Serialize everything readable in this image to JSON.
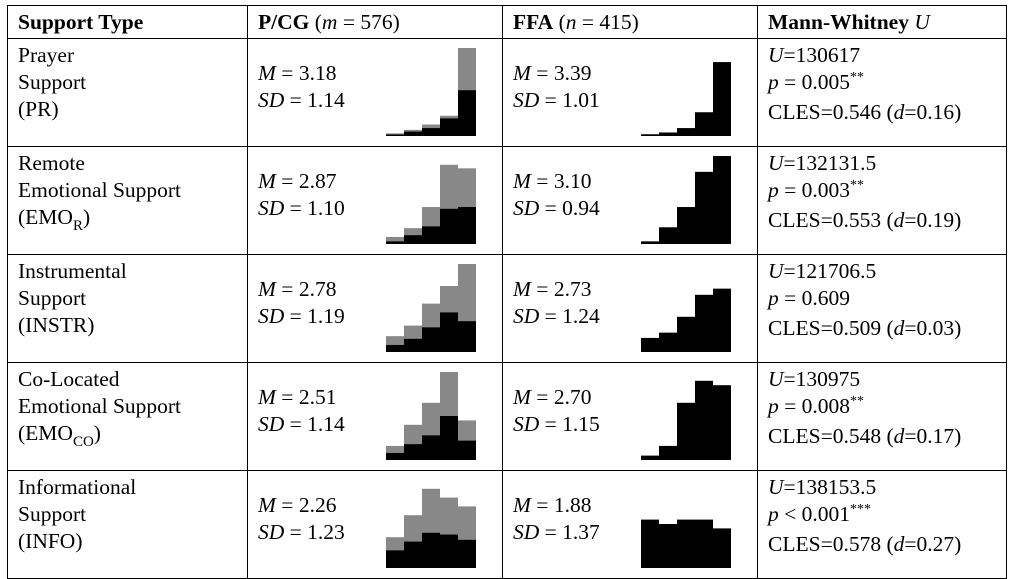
{
  "header": {
    "support_type": "Support Type",
    "pcg_label": "P/CG",
    "pcg_open": " (",
    "pcg_var": "m",
    "pcg_eq": " = 576)",
    "ffa_label": "FFA",
    "ffa_open": " (",
    "ffa_var": "n",
    "ffa_eq": " = 415)",
    "mw_label": "Mann-Whitney ",
    "mw_var": "U"
  },
  "stat_labels": {
    "mean": "M",
    "sd": "SD",
    "eq": " = ",
    "u": "U",
    "p": "p",
    "cles": "CLES=",
    "d_open": " (",
    "d": "d",
    "d_close": ")"
  },
  "colors": {
    "pcg_bar": "#888888",
    "ffa_bar": "#000000"
  },
  "rows": [
    {
      "type_lines": [
        "Prayer",
        "Support",
        "(PR)"
      ],
      "abbr": "",
      "abbr_sub": "",
      "pcg": {
        "mean": "3.18",
        "sd": "1.14",
        "hist_pcg": [
          0.03,
          0.07,
          0.13,
          0.23,
          1.0
        ],
        "hist_ffa": [
          0.01,
          0.05,
          0.09,
          0.2,
          0.52
        ]
      },
      "ffa": {
        "mean": "3.39",
        "sd": "1.01",
        "hist": [
          0.02,
          0.04,
          0.09,
          0.27,
          0.84
        ]
      },
      "mw": {
        "u": "130617",
        "p_op": " = ",
        "p": "0.005",
        "stars": "**",
        "cles": "0.546",
        "d": "=0.16"
      }
    },
    {
      "type_lines": [
        "Remote",
        "Emotional Support"
      ],
      "abbr": "(EMO",
      "abbr_sub": "R",
      "abbr_close": ")",
      "pcg": {
        "mean": "2.87",
        "sd": "1.10",
        "hist_pcg": [
          0.08,
          0.18,
          0.42,
          0.9,
          0.86
        ],
        "hist_ffa": [
          0.03,
          0.1,
          0.2,
          0.4,
          0.42
        ]
      },
      "ffa": {
        "mean": "3.10",
        "sd": "0.94",
        "hist": [
          0.03,
          0.19,
          0.42,
          0.82,
          1.0
        ]
      },
      "mw": {
        "u": "132131.5",
        "p_op": " = ",
        "p": "0.003",
        "stars": "**",
        "cles": "0.553",
        "d": "=0.19"
      }
    },
    {
      "type_lines": [
        "Instrumental",
        "Support",
        "(INSTR)"
      ],
      "abbr": "",
      "abbr_sub": "",
      "pcg": {
        "mean": "2.78",
        "sd": "1.19",
        "hist_pcg": [
          0.18,
          0.3,
          0.55,
          0.75,
          1.0
        ],
        "hist_ffa": [
          0.08,
          0.15,
          0.28,
          0.45,
          0.35
        ]
      },
      "ffa": {
        "mean": "2.73",
        "sd": "1.24",
        "hist": [
          0.16,
          0.22,
          0.4,
          0.65,
          0.72
        ]
      },
      "mw": {
        "u": "121706.5",
        "p_op": " = ",
        "p": "0.609",
        "stars": "",
        "cles": "0.509",
        "d": "=0.03"
      }
    },
    {
      "type_lines": [
        "Co-Located",
        "Emotional Support"
      ],
      "abbr": "(EMO",
      "abbr_sub": "CO",
      "abbr_close": ")",
      "pcg": {
        "mean": "2.51",
        "sd": "1.14",
        "hist_pcg": [
          0.16,
          0.4,
          0.65,
          1.0,
          0.45
        ],
        "hist_ffa": [
          0.08,
          0.18,
          0.28,
          0.5,
          0.22
        ]
      },
      "ffa": {
        "mean": "2.70",
        "sd": "1.15",
        "hist": [
          0.05,
          0.16,
          0.65,
          0.9,
          0.85
        ]
      },
      "mw": {
        "u": "130975",
        "p_op": " = ",
        "p": "0.008",
        "stars": "**",
        "cles": "0.548",
        "d": "=0.17"
      }
    },
    {
      "type_lines": [
        "Informational",
        "Support",
        "(INFO)"
      ],
      "abbr": "",
      "abbr_sub": "",
      "pcg": {
        "mean": "2.26",
        "sd": "1.23",
        "hist_pcg": [
          0.35,
          0.6,
          0.9,
          0.8,
          0.7
        ],
        "hist_ffa": [
          0.2,
          0.3,
          0.4,
          0.38,
          0.32
        ]
      },
      "ffa": {
        "mean": "1.88",
        "sd": "1.37",
        "hist": [
          0.55,
          0.5,
          0.55,
          0.55,
          0.45
        ]
      },
      "mw": {
        "u": "138153.5",
        "p_op": " < ",
        "p": "0.001",
        "stars": "***",
        "cles": "0.578",
        "d": "=0.27"
      }
    }
  ]
}
